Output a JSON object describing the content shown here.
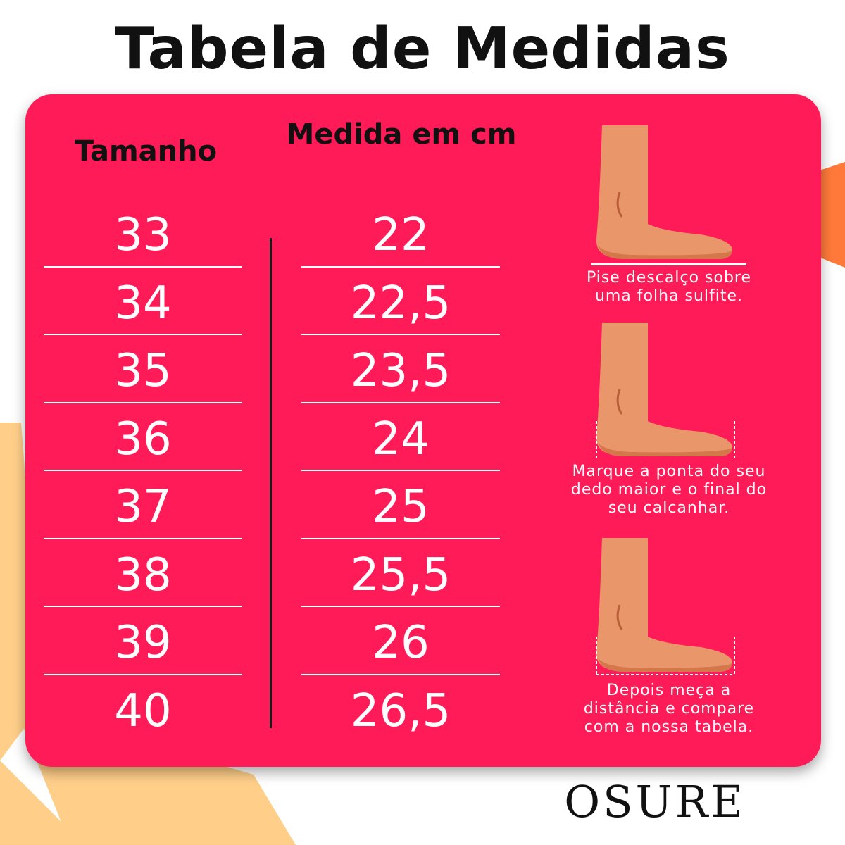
{
  "title": "Tabela de Medidas",
  "headers": {
    "size": "Tamanho",
    "cm": "Medida em cm"
  },
  "rows": [
    {
      "size": "33",
      "cm": "22"
    },
    {
      "size": "34",
      "cm": "22,5"
    },
    {
      "size": "35",
      "cm": "23,5"
    },
    {
      "size": "36",
      "cm": "24"
    },
    {
      "size": "37",
      "cm": "25"
    },
    {
      "size": "38",
      "cm": "25,5"
    },
    {
      "size": "39",
      "cm": "26"
    },
    {
      "size": "40",
      "cm": "26,5"
    }
  ],
  "steps": [
    {
      "icon": "foot-on-sheet-icon",
      "caption_lines": [
        "Pise descalço sobre",
        "uma folha sulfite."
      ]
    },
    {
      "icon": "foot-marked-icon",
      "caption_lines": [
        "Marque a ponta do seu",
        "dedo maior e o final do",
        "seu calcanhar."
      ]
    },
    {
      "icon": "foot-measured-icon",
      "caption_lines": [
        "Depois meça a",
        "distância e compare",
        "com a nossa tabela."
      ]
    }
  ],
  "brand": "OSURE",
  "colors": {
    "card": "#ff1b57",
    "skin": "#e8966a",
    "sole": "#d4784c",
    "accent_orange": "#ff7a3a",
    "accent_peach": "#ffcf8a"
  }
}
